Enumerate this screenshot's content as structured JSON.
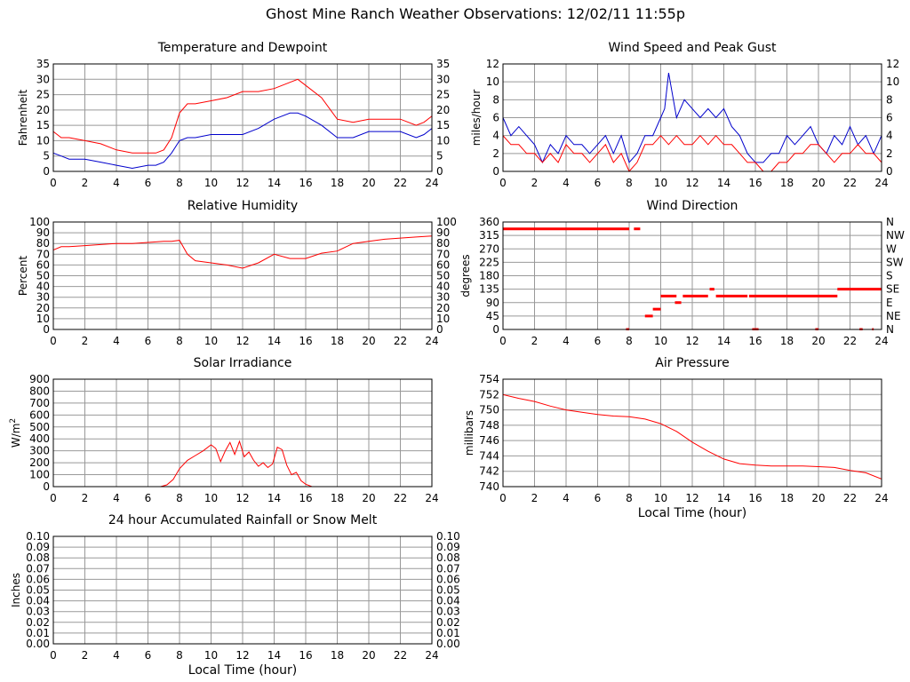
{
  "page_title": "Ghost Mine Ranch Weather Observations: 12/02/11 11:55p",
  "colors": {
    "series_red": "#ff0000",
    "series_blue": "#0000cc",
    "grid": "#999999",
    "frame": "#000000"
  },
  "chart_data": [
    {
      "id": "temperature",
      "type": "line",
      "title": "Temperature and Dewpoint",
      "xlabel": "",
      "ylabel": "Fahrenheit",
      "xlim": [
        0,
        24
      ],
      "ylim": [
        0,
        35
      ],
      "xticks": [
        "0",
        "2",
        "4",
        "6",
        "8",
        "10",
        "12",
        "14",
        "16",
        "18",
        "20",
        "22",
        "24"
      ],
      "yticks": [
        "0",
        "5",
        "10",
        "15",
        "20",
        "25",
        "30",
        "35"
      ],
      "right_yticks": [
        "0",
        "5",
        "10",
        "15",
        "20",
        "25",
        "30",
        "35"
      ],
      "grid": true,
      "series": [
        {
          "color": "#ff0000",
          "x": [
            0,
            0.5,
            1,
            2,
            3,
            4,
            5,
            6,
            6.5,
            7,
            7.5,
            8,
            8.5,
            9,
            10,
            11,
            12,
            13,
            14,
            15,
            15.5,
            16,
            17,
            18,
            19,
            20,
            21,
            22,
            23,
            23.5,
            24
          ],
          "y": [
            13,
            11,
            11,
            10,
            9,
            7,
            6,
            6,
            6,
            7,
            11,
            19,
            22,
            22,
            23,
            24,
            26,
            26,
            27,
            29,
            30,
            28,
            24,
            17,
            16,
            17,
            17,
            17,
            15,
            16,
            18
          ]
        },
        {
          "color": "#0000cc",
          "x": [
            0,
            0.5,
            1,
            2,
            3,
            4,
            5,
            6,
            6.5,
            7,
            7.5,
            8,
            8.5,
            9,
            10,
            11,
            12,
            13,
            14,
            15,
            15.5,
            16,
            17,
            18,
            19,
            20,
            21,
            22,
            23,
            23.5,
            24
          ],
          "y": [
            6,
            5,
            4,
            4,
            3,
            2,
            1,
            2,
            2,
            3,
            6,
            10,
            11,
            11,
            12,
            12,
            12,
            14,
            17,
            19,
            19,
            18,
            15,
            11,
            11,
            13,
            13,
            13,
            11,
            12,
            14
          ]
        }
      ]
    },
    {
      "id": "wind-speed",
      "type": "line",
      "title": "Wind Speed and Peak Gust",
      "xlabel": "",
      "ylabel": "miles/hour",
      "xlim": [
        0,
        24
      ],
      "ylim": [
        0,
        12
      ],
      "xticks": [
        "0",
        "2",
        "4",
        "6",
        "8",
        "10",
        "12",
        "14",
        "16",
        "18",
        "20",
        "22",
        "24"
      ],
      "yticks": [
        "0",
        "2",
        "4",
        "6",
        "8",
        "10",
        "12"
      ],
      "right_yticks": [
        "0",
        "2",
        "4",
        "6",
        "8",
        "10",
        "12"
      ],
      "grid": true,
      "series": [
        {
          "color": "#0000cc",
          "x": [
            0,
            0.5,
            1,
            1.5,
            2,
            2.5,
            3,
            3.5,
            4,
            4.5,
            5,
            5.5,
            6,
            6.5,
            7,
            7.5,
            8,
            8.5,
            9,
            9.5,
            10,
            10.25,
            10.5,
            11,
            11.5,
            12,
            12.5,
            13,
            13.5,
            14,
            14.5,
            15,
            15.5,
            16,
            16.5,
            17,
            17.5,
            18,
            18.5,
            19,
            19.5,
            20,
            20.5,
            21,
            21.5,
            22,
            22.5,
            23,
            23.5,
            24
          ],
          "y": [
            6,
            4,
            5,
            4,
            3,
            1,
            3,
            2,
            4,
            3,
            3,
            2,
            3,
            4,
            2,
            4,
            1,
            2,
            4,
            4,
            6,
            7,
            11,
            6,
            8,
            7,
            6,
            7,
            6,
            7,
            5,
            4,
            2,
            1,
            1,
            2,
            2,
            4,
            3,
            4,
            5,
            3,
            2,
            4,
            3,
            5,
            3,
            4,
            2,
            4
          ]
        },
        {
          "color": "#ff0000",
          "x": [
            0,
            0.5,
            1,
            1.5,
            2,
            2.5,
            3,
            3.5,
            4,
            4.5,
            5,
            5.5,
            6,
            6.5,
            7,
            7.5,
            8,
            8.5,
            9,
            9.5,
            10,
            10.5,
            11,
            11.5,
            12,
            12.5,
            13,
            13.5,
            14,
            14.5,
            15,
            15.5,
            16,
            16.5,
            17,
            17.5,
            18,
            18.5,
            19,
            19.5,
            20,
            20.5,
            21,
            21.5,
            22,
            22.5,
            23,
            23.5,
            24
          ],
          "y": [
            4,
            3,
            3,
            2,
            2,
            1,
            2,
            1,
            3,
            2,
            2,
            1,
            2,
            3,
            1,
            2,
            0,
            1,
            3,
            3,
            4,
            3,
            4,
            3,
            3,
            4,
            3,
            4,
            3,
            3,
            2,
            1,
            1,
            0,
            0,
            1,
            1,
            2,
            2,
            3,
            3,
            2,
            1,
            2,
            2,
            3,
            2,
            2,
            1
          ]
        }
      ]
    },
    {
      "id": "humidity",
      "type": "line",
      "title": "Relative Humidity",
      "xlabel": "",
      "ylabel": "Percent",
      "xlim": [
        0,
        24
      ],
      "ylim": [
        0,
        100
      ],
      "xticks": [
        "0",
        "2",
        "4",
        "6",
        "8",
        "10",
        "12",
        "14",
        "16",
        "18",
        "20",
        "22",
        "24"
      ],
      "yticks": [
        "0",
        "10",
        "20",
        "30",
        "40",
        "50",
        "60",
        "70",
        "80",
        "90",
        "100"
      ],
      "right_yticks": [
        "0",
        "10",
        "20",
        "30",
        "40",
        "50",
        "60",
        "70",
        "80",
        "90",
        "100"
      ],
      "grid": true,
      "series": [
        {
          "color": "#ff0000",
          "x": [
            0,
            0.5,
            1,
            2,
            3,
            4,
            5,
            6,
            7,
            7.5,
            8,
            8.5,
            9,
            10,
            11,
            12,
            13,
            14,
            15,
            16,
            17,
            18,
            19,
            20,
            21,
            22,
            23,
            24
          ],
          "y": [
            74,
            77,
            77,
            78,
            79,
            80,
            80,
            81,
            82,
            82,
            83,
            70,
            64,
            62,
            60,
            57,
            62,
            70,
            66,
            66,
            71,
            73,
            80,
            82,
            84,
            85,
            86,
            87
          ]
        }
      ]
    },
    {
      "id": "wind-direction",
      "type": "scatter",
      "title": "Wind Direction",
      "xlabel": "",
      "ylabel": "degrees",
      "xlim": [
        0,
        24
      ],
      "ylim": [
        0,
        360
      ],
      "xticks": [
        "0",
        "2",
        "4",
        "6",
        "8",
        "10",
        "12",
        "14",
        "16",
        "18",
        "20",
        "22",
        "24"
      ],
      "yticks": [
        "0",
        "45",
        "90",
        "135",
        "180",
        "225",
        "270",
        "315",
        "360"
      ],
      "right_yticks": [
        "N",
        "NE",
        "E",
        "SE",
        "S",
        "SW",
        "W",
        "NW",
        "N"
      ],
      "grid": true,
      "segments": [
        {
          "x0": 0,
          "x1": 8.0,
          "y": 337
        },
        {
          "x0": 8.3,
          "x1": 8.7,
          "y": 337
        },
        {
          "x0": 7.8,
          "x1": 8.0,
          "y": 0
        },
        {
          "x0": 9.0,
          "x1": 9.5,
          "y": 45
        },
        {
          "x0": 9.5,
          "x1": 10.0,
          "y": 68
        },
        {
          "x0": 10.0,
          "x1": 11.0,
          "y": 112
        },
        {
          "x0": 10.9,
          "x1": 11.3,
          "y": 90
        },
        {
          "x0": 11.4,
          "x1": 13.0,
          "y": 112
        },
        {
          "x0": 13.1,
          "x1": 13.4,
          "y": 135
        },
        {
          "x0": 13.5,
          "x1": 15.5,
          "y": 112
        },
        {
          "x0": 15.6,
          "x1": 21.2,
          "y": 112
        },
        {
          "x0": 21.2,
          "x1": 24.0,
          "y": 135
        },
        {
          "x0": 15.8,
          "x1": 16.2,
          "y": 0
        },
        {
          "x0": 19.8,
          "x1": 20.0,
          "y": 0
        },
        {
          "x0": 22.6,
          "x1": 22.8,
          "y": 0
        },
        {
          "x0": 23.4,
          "x1": 23.5,
          "y": 0
        }
      ]
    },
    {
      "id": "solar",
      "type": "line",
      "title": "Solar Irradiance",
      "xlabel": "",
      "ylabel": "W/m",
      "ylabel_sup": "2",
      "xlim": [
        0,
        24
      ],
      "ylim": [
        0,
        900
      ],
      "xticks": [
        "0",
        "2",
        "4",
        "6",
        "8",
        "10",
        "12",
        "14",
        "16",
        "18",
        "20",
        "22",
        "24"
      ],
      "yticks": [
        "0",
        "100",
        "200",
        "300",
        "400",
        "500",
        "600",
        "700",
        "800",
        "900"
      ],
      "right_yticks": [],
      "grid": true,
      "series": [
        {
          "color": "#ff0000",
          "x": [
            0,
            6.8,
            7.2,
            7.6,
            8,
            8.5,
            9,
            9.5,
            10,
            10.3,
            10.6,
            10.9,
            11.2,
            11.5,
            11.8,
            12.1,
            12.4,
            12.7,
            13,
            13.3,
            13.6,
            13.9,
            14.2,
            14.5,
            14.8,
            15.1,
            15.4,
            15.7,
            16,
            16.4,
            17,
            24
          ],
          "y": [
            0,
            0,
            15,
            60,
            150,
            220,
            260,
            300,
            350,
            320,
            210,
            300,
            370,
            270,
            380,
            250,
            290,
            220,
            170,
            200,
            160,
            190,
            330,
            310,
            180,
            100,
            120,
            50,
            20,
            0,
            0,
            0
          ]
        }
      ]
    },
    {
      "id": "pressure",
      "type": "line",
      "title": "Air Pressure",
      "xlabel": "Local Time (hour)",
      "ylabel": "millibars",
      "xlim": [
        0,
        24
      ],
      "ylim": [
        740,
        754
      ],
      "xticks": [
        "0",
        "2",
        "4",
        "6",
        "8",
        "10",
        "12",
        "14",
        "16",
        "18",
        "20",
        "22",
        "24"
      ],
      "yticks": [
        "740",
        "742",
        "744",
        "746",
        "748",
        "750",
        "752",
        "754"
      ],
      "right_yticks": [],
      "grid": true,
      "series": [
        {
          "color": "#ff0000",
          "x": [
            0,
            1,
            2,
            3,
            4,
            5,
            6,
            7,
            8,
            9,
            10,
            11,
            12,
            13,
            14,
            15,
            16,
            17,
            18,
            19,
            20,
            21,
            22,
            23,
            24
          ],
          "y": [
            752,
            751.5,
            751.1,
            750.5,
            750,
            749.7,
            749.4,
            749.2,
            749.1,
            748.8,
            748.2,
            747.2,
            745.8,
            744.6,
            743.6,
            743,
            742.8,
            742.7,
            742.7,
            742.7,
            742.6,
            742.5,
            742.1,
            741.8,
            741
          ]
        }
      ]
    },
    {
      "id": "rainfall",
      "type": "line",
      "title": "24 hour Accumulated Rainfall or Snow Melt",
      "xlabel": "Local Time (hour)",
      "ylabel": "Inches",
      "xlim": [
        0,
        24
      ],
      "ylim": [
        0,
        0.1
      ],
      "xticks": [
        "0",
        "2",
        "4",
        "6",
        "8",
        "10",
        "12",
        "14",
        "16",
        "18",
        "20",
        "22",
        "24"
      ],
      "yticks": [
        "0.00",
        "0.01",
        "0.02",
        "0.03",
        "0.04",
        "0.05",
        "0.06",
        "0.07",
        "0.08",
        "0.09",
        "0.10"
      ],
      "right_yticks": [
        "0.00",
        "0.01",
        "0.02",
        "0.03",
        "0.04",
        "0.05",
        "0.06",
        "0.07",
        "0.08",
        "0.09",
        "0.10"
      ],
      "grid": true,
      "series": [
        {
          "color": "#ff0000",
          "x": [
            0,
            24
          ],
          "y": [
            0,
            0
          ]
        }
      ]
    }
  ]
}
